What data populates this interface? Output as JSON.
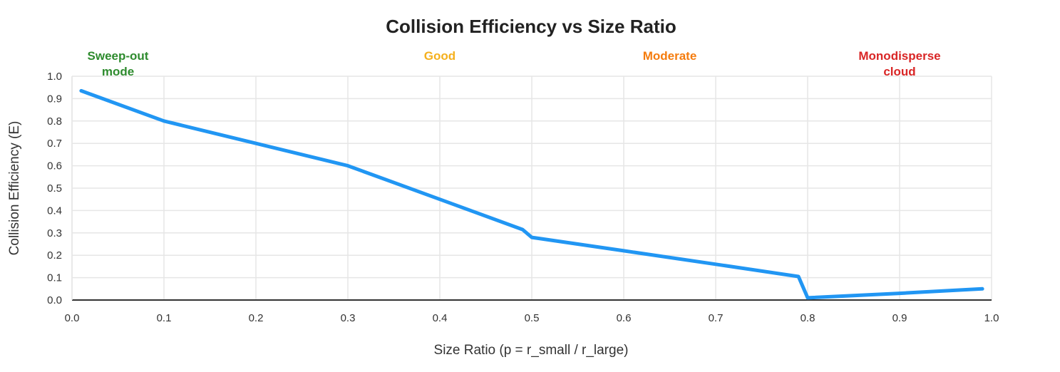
{
  "chart_data": {
    "type": "line",
    "title": "Collision Efficiency vs Size Ratio",
    "xlabel": "Size Ratio (p = r_small / r_large)",
    "ylabel": "Collision Efficiency (E)",
    "xlim": [
      0,
      1
    ],
    "ylim": [
      0,
      1
    ],
    "xticks": [
      "0.0",
      "0.1",
      "0.2",
      "0.3",
      "0.4",
      "0.5",
      "0.6",
      "0.7",
      "0.8",
      "0.9",
      "1.0"
    ],
    "yticks": [
      "0.0",
      "0.1",
      "0.2",
      "0.3",
      "0.4",
      "0.5",
      "0.6",
      "0.7",
      "0.8",
      "0.9",
      "1.0"
    ],
    "grid": true,
    "legend": "none",
    "series": [
      {
        "name": "Collision Efficiency",
        "color": "#2196f3",
        "x": [
          0.01,
          0.1,
          0.2,
          0.3,
          0.4,
          0.49,
          0.5,
          0.6,
          0.7,
          0.79,
          0.8,
          0.9,
          0.99
        ],
        "y": [
          0.935,
          0.8,
          0.7,
          0.6,
          0.45,
          0.315,
          0.28,
          0.22,
          0.16,
          0.105,
          0.01,
          0.03,
          0.05
        ]
      }
    ],
    "annotations": [
      {
        "lines": [
          "Sweep-out",
          "mode"
        ],
        "x": 0.05,
        "color": "#2e8b2e"
      },
      {
        "lines": [
          "Good"
        ],
        "x": 0.4,
        "color": "#f5b01d"
      },
      {
        "lines": [
          "Moderate"
        ],
        "x": 0.65,
        "color": "#f57c0e"
      },
      {
        "lines": [
          "Monodisperse",
          "cloud"
        ],
        "x": 0.9,
        "color": "#d92626"
      }
    ]
  }
}
